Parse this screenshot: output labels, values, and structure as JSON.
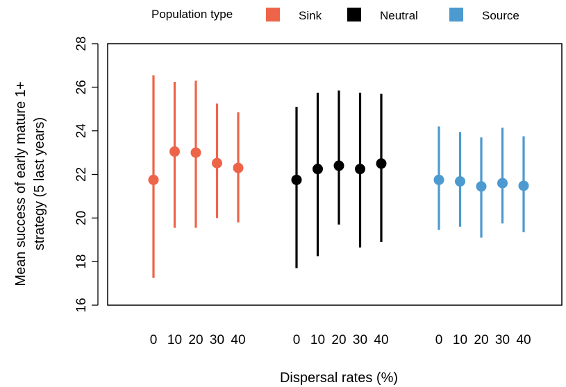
{
  "chart_data": {
    "type": "scatter",
    "subtype": "point-range",
    "title": "",
    "xlabel": "Dispersal rates (%)",
    "ylabel_lines": [
      "Mean success of early mature 1+",
      "strategy (5 last years)"
    ],
    "ylim": [
      16,
      28
    ],
    "yticks": [
      16,
      18,
      20,
      22,
      24,
      26,
      28
    ],
    "categories": [
      "0",
      "10",
      "20",
      "30",
      "40"
    ],
    "legend": {
      "title": "Population type",
      "placement": "top",
      "entries": [
        "Sink",
        "Neutral",
        "Source"
      ]
    },
    "series": [
      {
        "name": "Sink",
        "color": "#EE6449",
        "points": [
          {
            "x": "0",
            "mean": 21.75,
            "low": 17.25,
            "high": 26.55
          },
          {
            "x": "10",
            "mean": 23.05,
            "low": 19.55,
            "high": 26.25
          },
          {
            "x": "20",
            "mean": 23.0,
            "low": 19.55,
            "high": 26.3
          },
          {
            "x": "30",
            "mean": 22.52,
            "low": 20.0,
            "high": 25.25
          },
          {
            "x": "40",
            "mean": 22.3,
            "low": 19.8,
            "high": 24.85
          }
        ]
      },
      {
        "name": "Neutral",
        "color": "#000000",
        "points": [
          {
            "x": "0",
            "mean": 21.75,
            "low": 17.7,
            "high": 25.1
          },
          {
            "x": "10",
            "mean": 22.25,
            "low": 18.25,
            "high": 25.75
          },
          {
            "x": "20",
            "mean": 22.4,
            "low": 19.7,
            "high": 25.85
          },
          {
            "x": "30",
            "mean": 22.25,
            "low": 18.65,
            "high": 25.75
          },
          {
            "x": "40",
            "mean": 22.5,
            "low": 18.9,
            "high": 25.7
          }
        ]
      },
      {
        "name": "Source",
        "color": "#4C9AD0",
        "points": [
          {
            "x": "0",
            "mean": 21.75,
            "low": 19.45,
            "high": 24.2
          },
          {
            "x": "10",
            "mean": 21.68,
            "low": 19.6,
            "high": 23.95
          },
          {
            "x": "20",
            "mean": 21.45,
            "low": 19.1,
            "high": 23.7
          },
          {
            "x": "30",
            "mean": 21.6,
            "low": 19.75,
            "high": 24.15
          },
          {
            "x": "40",
            "mean": 21.48,
            "low": 19.35,
            "high": 23.75
          }
        ]
      }
    ],
    "grid": false
  }
}
